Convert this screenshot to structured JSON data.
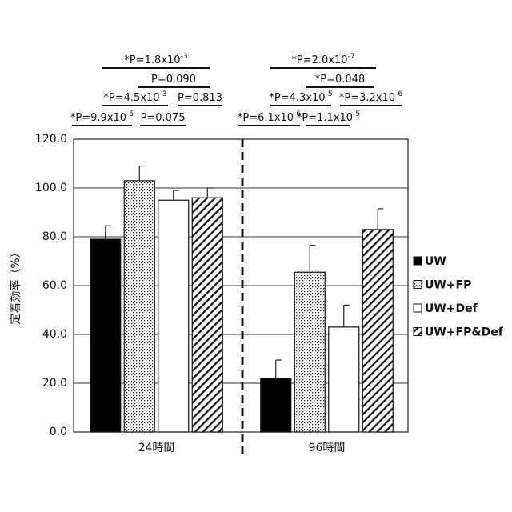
{
  "chart_data": {
    "type": "bar",
    "y_label": "定着効率（%）",
    "categories": [
      "24時間",
      "96時間"
    ],
    "ylim": [
      0,
      120
    ],
    "yticks": [
      {
        "value": 0,
        "label": "0.0"
      },
      {
        "value": 20,
        "label": "20.0"
      },
      {
        "value": 40,
        "label": "40.0"
      },
      {
        "value": 60,
        "label": "60.0"
      },
      {
        "value": 80,
        "label": "80.0"
      },
      {
        "value": 100,
        "label": "100.0"
      },
      {
        "value": 120,
        "label": "120.0"
      }
    ],
    "grid": true,
    "legend": "right",
    "series": [
      {
        "name": "UW",
        "color": "#000000",
        "pattern": "solid",
        "values": [
          79,
          22
        ],
        "errors": [
          5.5,
          7.5
        ]
      },
      {
        "name": "UW+FP",
        "color": "#ffffff",
        "pattern": "dots",
        "values": [
          103,
          65.5
        ],
        "errors": [
          6,
          11
        ]
      },
      {
        "name": "UW+Def",
        "color": "#ffffff",
        "pattern": "none",
        "values": [
          95,
          43
        ],
        "errors": [
          4,
          9
        ]
      },
      {
        "name": "UW+FP&Def",
        "color": "#ffffff",
        "pattern": "hatch",
        "values": [
          96,
          83
        ],
        "errors": [
          4,
          8.5
        ]
      }
    ],
    "annotations": [
      {
        "text": "*P=1.8x10",
        "exp": "-3"
      },
      {
        "text": "P=0.090"
      },
      {
        "text": "*P=4.5x10",
        "exp": "-3"
      },
      {
        "text": "P=0.813"
      },
      {
        "text": "*P=9.9x10",
        "exp": "-5"
      },
      {
        "text": "P=0.075"
      },
      {
        "text": "*P=2.0x10",
        "exp": "-7"
      },
      {
        "text": "*P=0.048"
      },
      {
        "text": "*P=4.3x10",
        "exp": "-5"
      },
      {
        "text": "*P=3.2x10",
        "exp": "-6"
      },
      {
        "text": "*P=6.1x10",
        "exp": "-6"
      },
      {
        "text": "*P=1.1x10",
        "exp": "-5"
      }
    ]
  }
}
